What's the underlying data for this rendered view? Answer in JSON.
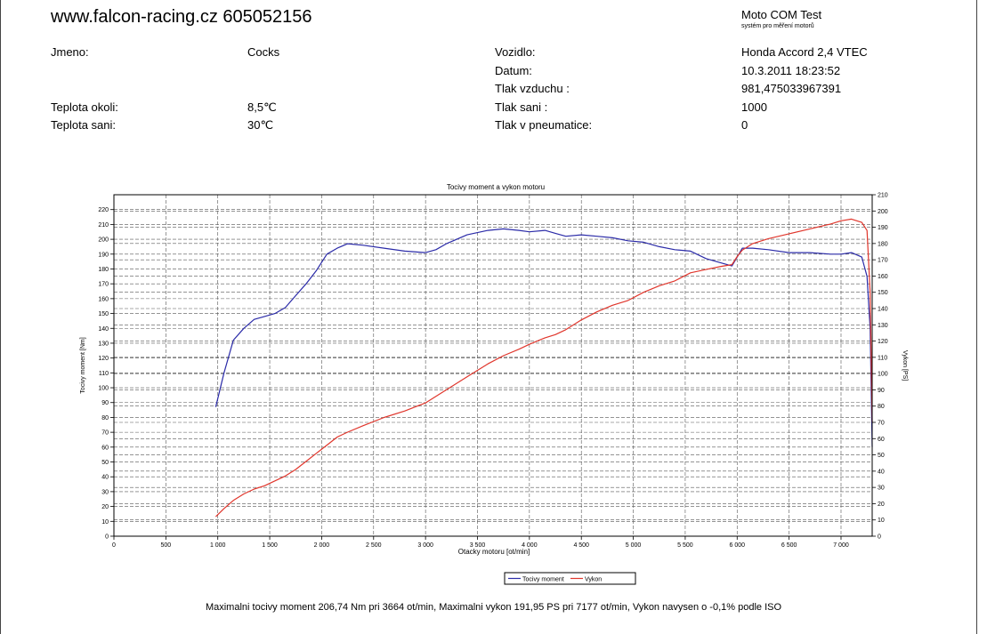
{
  "header": {
    "site": "www.falcon-racing.cz 605052156",
    "brand_title": "Moto COM Test",
    "brand_subtitle": "systém pro měření motorů"
  },
  "info": {
    "jmeno_label": "Jmeno:",
    "jmeno_value": "Cocks",
    "teplota_okoli_label": "Teplota okoli:",
    "teplota_okoli_value": "8,5℃",
    "teplota_sani_label": "Teplota sani:",
    "teplota_sani_value": "30℃",
    "vozidlo_label": "Vozidlo:",
    "vozidlo_value": "Honda Accord 2,4 VTEC",
    "datum_label": "Datum:",
    "datum_value": "10.3.2011 18:23:52",
    "tlak_vzduchu_label": "Tlak vzduchu :",
    "tlak_vzduchu_value": "981,475033967391",
    "tlak_sani_label": "Tlak sani :",
    "tlak_sani_value": "1000",
    "tlak_pneu_label": "Tlak v pneumatice:",
    "tlak_pneu_value": "0"
  },
  "footer": "Maximalni tocivy moment 206,74 Nm pri 3664 ot/min,  Maximalni vykon 191,95 PS pri 7177 ot/min,  Vykon navysen o -0,1% podle ISO",
  "colors": {
    "torque": "#2b2ba8",
    "power": "#e0362c",
    "grid": "#555555"
  },
  "chart_data": {
    "type": "line",
    "title": "Tocivy moment a vykon motoru",
    "xlabel": "Otacky motoru [ot/min]",
    "ylabel_left": "Tocivy moment [Nm]",
    "ylabel_right": "Vykon [PS]",
    "xlim": [
      0,
      7300
    ],
    "ylim_left": [
      0,
      230
    ],
    "ylim_right": [
      0,
      210
    ],
    "x_ticks": [
      0,
      500,
      1000,
      1500,
      2000,
      2500,
      3000,
      3500,
      4000,
      4500,
      5000,
      5500,
      6000,
      6500,
      7000
    ],
    "x_tick_labels": [
      "0",
      "500",
      "1 000",
      "1 500",
      "2 000",
      "2 500",
      "3 000",
      "3 500",
      "4 000",
      "4 500",
      "5 000",
      "5 500",
      "6 000",
      "6 500",
      "7 000"
    ],
    "y_left_ticks": [
      0,
      10,
      20,
      30,
      40,
      50,
      60,
      70,
      80,
      90,
      100,
      110,
      120,
      130,
      140,
      150,
      160,
      170,
      180,
      190,
      200,
      210,
      220
    ],
    "y_right_ticks": [
      0,
      10,
      20,
      30,
      40,
      50,
      60,
      70,
      80,
      90,
      100,
      110,
      120,
      130,
      140,
      150,
      160,
      170,
      180,
      190,
      200,
      210
    ],
    "legend": {
      "position": "bottom-right"
    },
    "series": [
      {
        "name": "Tocivy moment",
        "axis": "left",
        "x": [
          980,
          1060,
          1150,
          1250,
          1350,
          1450,
          1550,
          1650,
          1750,
          1850,
          1950,
          2050,
          2150,
          2250,
          2400,
          2600,
          2800,
          3000,
          3100,
          3200,
          3400,
          3600,
          3750,
          3900,
          4000,
          4150,
          4250,
          4350,
          4500,
          4650,
          4800,
          4950,
          5100,
          5250,
          5400,
          5550,
          5700,
          5850,
          5950,
          6000,
          6050,
          6150,
          6300,
          6500,
          6700,
          6900,
          7000,
          7100,
          7200,
          7250,
          7280,
          7300
        ],
        "y": [
          87,
          110,
          132,
          140,
          146,
          148,
          150,
          154,
          162,
          170,
          179,
          190,
          194,
          197,
          196,
          194,
          192,
          191,
          193,
          197,
          203,
          206,
          207,
          206,
          205,
          206,
          204,
          202,
          203,
          202,
          201,
          199,
          198,
          195,
          193,
          192,
          187,
          184,
          182,
          188,
          194,
          194,
          193,
          191,
          191,
          190,
          190,
          191,
          188,
          175,
          140,
          60
        ]
      },
      {
        "name": "Vykon",
        "axis": "right",
        "x": [
          980,
          1060,
          1150,
          1250,
          1350,
          1450,
          1550,
          1650,
          1750,
          1850,
          1950,
          2050,
          2150,
          2250,
          2400,
          2600,
          2800,
          3000,
          3100,
          3200,
          3400,
          3600,
          3750,
          3900,
          4000,
          4150,
          4250,
          4350,
          4500,
          4650,
          4800,
          4950,
          5100,
          5250,
          5400,
          5550,
          5700,
          5850,
          5950,
          6000,
          6050,
          6150,
          6300,
          6500,
          6700,
          6900,
          7000,
          7100,
          7200,
          7250,
          7280,
          7300
        ],
        "y": [
          12,
          17,
          22,
          26,
          29,
          31,
          34,
          37,
          41,
          46,
          51,
          56,
          61,
          64,
          68,
          73,
          77,
          82,
          86,
          90,
          98,
          106,
          111,
          115,
          118,
          122,
          124,
          127,
          133,
          138,
          142,
          145,
          150,
          154,
          157,
          162,
          164,
          166,
          167,
          172,
          176,
          180,
          183,
          186,
          189,
          192,
          194,
          195,
          193,
          188,
          150,
          70
        ]
      }
    ]
  }
}
